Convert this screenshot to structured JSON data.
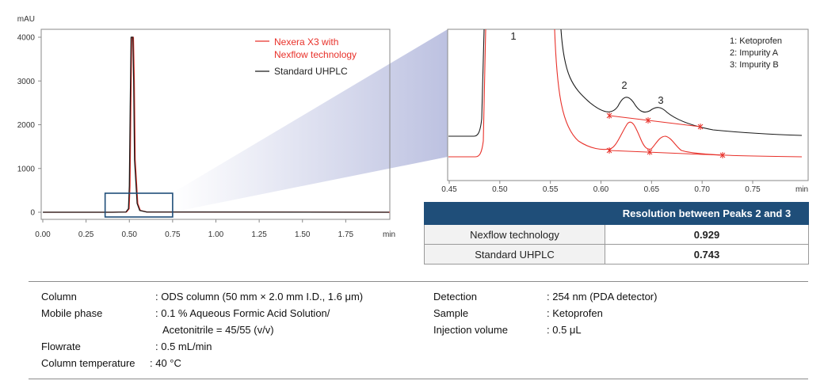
{
  "chart_data": [
    {
      "type": "line",
      "role": "full-chromatogram",
      "ylabel": "mAU",
      "xunit": "min",
      "xlim": [
        0,
        2.0
      ],
      "ylim": [
        -100,
        4200
      ],
      "xticks": [
        "0.00",
        "0.25",
        "0.50",
        "0.75",
        "1.00",
        "1.25",
        "1.50",
        "1.75",
        "min"
      ],
      "xtick_values": [
        0,
        0.25,
        0.5,
        0.75,
        1.0,
        1.25,
        1.5,
        1.75
      ],
      "yticks": [
        "4000",
        "3000",
        "2000",
        "1000",
        "0"
      ],
      "ytick_values": [
        4000,
        3000,
        2000,
        1000,
        0
      ],
      "series": [
        {
          "name": "Nexera X3 with\nNexflow technology",
          "color": "#e8312a",
          "x": [
            0,
            0.4,
            0.48,
            0.495,
            0.5,
            0.505,
            0.51,
            0.515,
            0.52,
            0.525,
            0.53,
            0.545,
            0.56,
            0.6,
            2.0
          ],
          "y": [
            0,
            0,
            5,
            80,
            600,
            2400,
            4000,
            4000,
            4000,
            3000,
            1200,
            200,
            40,
            5,
            0
          ]
        },
        {
          "name": "Standard UHPLC",
          "color": "#1a1a1a",
          "x": [
            0,
            0.4,
            0.48,
            0.495,
            0.5,
            0.505,
            0.51,
            0.515,
            0.52,
            0.525,
            0.53,
            0.545,
            0.56,
            0.6,
            2.0
          ],
          "y": [
            0,
            0,
            5,
            80,
            600,
            2400,
            4000,
            4000,
            4000,
            3000,
            1200,
            200,
            40,
            5,
            0
          ]
        }
      ],
      "zoom_box_x": [
        0.36,
        0.75
      ]
    },
    {
      "type": "line",
      "role": "zoomed-chromatogram",
      "xunit": "min",
      "xlim": [
        0.45,
        1.0
      ],
      "xticks": [
        "0.45",
        "0.50",
        "0.55",
        "0.60",
        "0.65",
        "0.70",
        "0.75",
        "min"
      ],
      "xtick_values": [
        0.45,
        0.5,
        0.55,
        0.6,
        0.65,
        0.7,
        0.75
      ],
      "peak_labels": [
        {
          "label": "1",
          "x": 0.515
        },
        {
          "label": "2",
          "x": 0.628
        },
        {
          "label": "3",
          "x": 0.662
        }
      ],
      "legend": [
        "1: Ketoprofen",
        "2: Impurity A",
        "3: Impurity B"
      ],
      "series": [
        {
          "name": "Standard UHPLC",
          "color": "#1a1a1a"
        },
        {
          "name": "Nexera X3 with Nexflow technology",
          "color": "#e8312a"
        }
      ]
    }
  ],
  "table": {
    "header": "Resolution between Peaks 2 and 3",
    "rows": [
      {
        "name": "Nexflow technology",
        "value": "0.929"
      },
      {
        "name": "Standard UHPLC",
        "value": "0.743"
      }
    ]
  },
  "conditions": {
    "left": [
      {
        "label": "Column",
        "value": ": ODS column (50 mm × 2.0 mm I.D., 1.6 μm)"
      },
      {
        "label": "Mobile phase",
        "value": ": 0.1 % Aqueous Formic Acid Solution/"
      },
      {
        "label": "",
        "value": "Acetonitrile = 45/55 (v/v)"
      },
      {
        "label": "Flowrate",
        "value": ": 0.5 mL/min"
      },
      {
        "label": "Column temperature",
        "value": ": 40 °C"
      }
    ],
    "right": [
      {
        "label": "Detection",
        "value": ": 254 nm (PDA detector)"
      },
      {
        "label": "Sample",
        "value": ": Ketoprofen"
      },
      {
        "label": "Injection volume",
        "value": ": 0.5 μL"
      }
    ]
  },
  "colors": {
    "nexflow": "#e8312a",
    "standard": "#1a1a1a",
    "zoombox": "#1f4e79",
    "header": "#1f4e79"
  }
}
